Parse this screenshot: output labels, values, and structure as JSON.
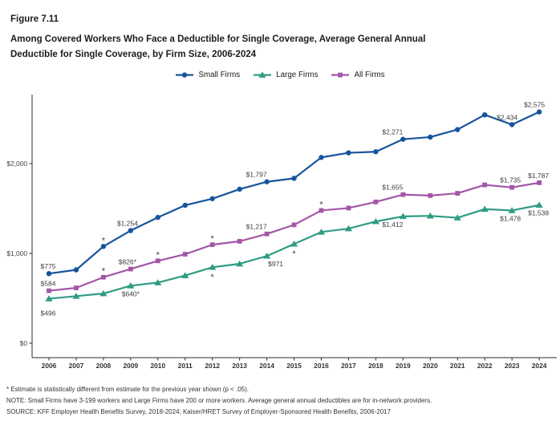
{
  "figure": {
    "number": "Figure 7.11",
    "title_line1": "Among Covered Workers Who Face a Deductible for Single Coverage, Average General Annual",
    "title_line2": "Deductible for Single Coverage, by Firm Size, 2006-2024"
  },
  "chart_data": {
    "type": "line",
    "title": "Among Covered Workers Who Face a Deductible for Single Coverage, Average General Annual Deductible for Single Coverage, by Firm Size, 2006-2024",
    "xlabel": "",
    "ylabel": "",
    "x": [
      2006,
      2007,
      2008,
      2009,
      2010,
      2011,
      2012,
      2013,
      2014,
      2015,
      2016,
      2017,
      2018,
      2019,
      2020,
      2021,
      2022,
      2023,
      2024
    ],
    "ylim": [
      0,
      2800
    ],
    "grid": false,
    "legend_position": "top",
    "yticks": [
      {
        "label": "$0",
        "value": 0
      },
      {
        "label": "$1,000",
        "value": 1000
      },
      {
        "label": "$2,000",
        "value": 2000
      }
    ],
    "series": [
      {
        "name": "Small Firms",
        "marker": "circle",
        "color": "#17549B",
        "values": [
          775,
          817,
          1078,
          1254,
          1401,
          1536,
          1609,
          1715,
          1797,
          1836,
          2069,
          2120,
          2132,
          2271,
          2295,
          2379,
          2543,
          2434,
          2575
        ]
      },
      {
        "name": "Large Firms",
        "marker": "triangle",
        "color": "#2F9C82",
        "values": [
          496,
          524,
          553,
          640,
          675,
          754,
          846,
          884,
          971,
          1105,
          1238,
          1276,
          1355,
          1412,
          1418,
          1397,
          1493,
          1478,
          1538
        ]
      },
      {
        "name": "All Firms",
        "marker": "square",
        "color": "#A456A8",
        "values": [
          584,
          616,
          735,
          826,
          917,
          991,
          1097,
          1135,
          1217,
          1318,
          1478,
          1505,
          1573,
          1655,
          1644,
          1669,
          1763,
          1735,
          1787
        ]
      }
    ],
    "point_labels": [
      {
        "series": "Small Firms",
        "year": 2006,
        "text": "$775",
        "dx": -1,
        "pos": "above"
      },
      {
        "series": "All Firms",
        "year": 2006,
        "text": "$584",
        "dx": -1,
        "pos": "above"
      },
      {
        "series": "Large Firms",
        "year": 2006,
        "text": "$496",
        "dx": -1,
        "pos": "below",
        "dy": 21
      },
      {
        "series": "Small Firms",
        "year": 2009,
        "text": "$1,254",
        "dx": -4,
        "pos": "above"
      },
      {
        "series": "All Firms",
        "year": 2009,
        "text": "$826*",
        "dx": -4,
        "pos": "above"
      },
      {
        "series": "Large Firms",
        "year": 2009,
        "text": "$640*",
        "dx": 0,
        "pos": "below"
      },
      {
        "series": "Small Firms",
        "year": 2014,
        "text": "$1,797",
        "dx": -13,
        "pos": "above"
      },
      {
        "series": "All Firms",
        "year": 2014,
        "text": "$1,217",
        "dx": -13,
        "pos": "above"
      },
      {
        "series": "Large Firms",
        "year": 2014,
        "text": "$971",
        "dx": 11,
        "pos": "below"
      },
      {
        "series": "Small Firms",
        "year": 2019,
        "text": "$2,271",
        "dx": -13,
        "pos": "above"
      },
      {
        "series": "All Firms",
        "year": 2019,
        "text": "$1,655",
        "dx": -13,
        "pos": "above"
      },
      {
        "series": "Large Firms",
        "year": 2019,
        "text": "$1,412",
        "dx": -13,
        "pos": "below"
      },
      {
        "series": "Small Firms",
        "year": 2023,
        "text": "$2,434",
        "dx": -6,
        "pos": "above"
      },
      {
        "series": "Small Firms",
        "year": 2024,
        "text": "$2,575",
        "dx": -6,
        "pos": "above"
      },
      {
        "series": "All Firms",
        "year": 2023,
        "text": "$1,735",
        "dx": -2,
        "pos": "above"
      },
      {
        "series": "All Firms",
        "year": 2024,
        "text": "$1,787",
        "dx": -1,
        "pos": "above"
      },
      {
        "series": "Large Firms",
        "year": 2023,
        "text": "$1,478",
        "dx": -2,
        "pos": "below"
      },
      {
        "series": "Large Firms",
        "year": 2024,
        "text": "$1,538",
        "dx": -1,
        "pos": "below"
      }
    ],
    "significance_markers": [
      {
        "series": "Small Firms",
        "year": 2008,
        "pos": "above"
      },
      {
        "series": "All Firms",
        "year": 2008,
        "pos": "above"
      },
      {
        "series": "All Firms",
        "year": 2010,
        "pos": "above"
      },
      {
        "series": "All Firms",
        "year": 2012,
        "pos": "above"
      },
      {
        "series": "All Firms",
        "year": 2016,
        "pos": "above"
      },
      {
        "series": "Large Firms",
        "year": 2012,
        "pos": "below"
      },
      {
        "series": "Large Firms",
        "year": 2015,
        "pos": "below"
      }
    ]
  },
  "footnotes": [
    "* Estimate is statistically different from estimate for the previous year shown (p < .05).",
    "NOTE: Small Firms have 3-199 workers and Large Firms have 200 or more workers. Average general annual deductibles are for in-network providers.",
    "SOURCE: KFF Employer Health Benefits Survey, 2018-2024; Kaiser/HRET Survey of Employer-Sponsored Health Benefits, 2006-2017"
  ]
}
